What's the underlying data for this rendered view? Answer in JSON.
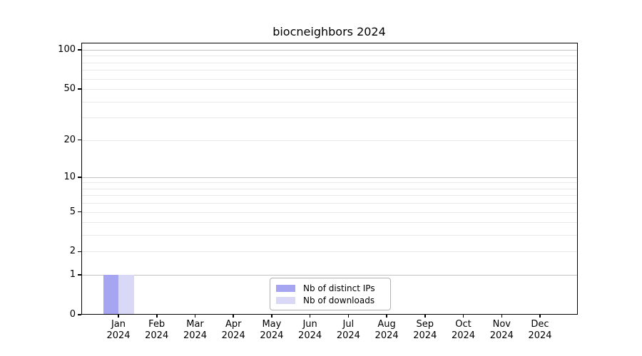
{
  "figure": {
    "background": "#ffffff"
  },
  "chart_data": {
    "type": "bar",
    "title": "biocneighbors 2024",
    "categories": [
      "Jan 2024",
      "Feb 2024",
      "Mar 2024",
      "Apr 2024",
      "May 2024",
      "Jun 2024",
      "Jul 2024",
      "Aug 2024",
      "Sep 2024",
      "Oct 2024",
      "Nov 2024",
      "Dec 2024"
    ],
    "series": [
      {
        "name": "Nb of distinct IPs",
        "color": "#a5a5f2",
        "values": [
          1,
          0,
          0,
          0,
          0,
          0,
          0,
          0,
          0,
          0,
          0,
          0
        ]
      },
      {
        "name": "Nb of downloads",
        "color": "#d9d9f7",
        "values": [
          1,
          0,
          0,
          0,
          0,
          0,
          0,
          0,
          0,
          0,
          0,
          0
        ]
      }
    ],
    "xlabel": "",
    "ylabel": "",
    "yscale": "log1p",
    "ylim": [
      0,
      113
    ],
    "yticks": [
      0,
      1,
      2,
      5,
      10,
      20,
      50,
      100
    ],
    "major_gridline_values": [
      1,
      10,
      100
    ],
    "minor_gridline_values": [
      2,
      3,
      4,
      5,
      6,
      7,
      8,
      9,
      20,
      30,
      40,
      50,
      60,
      70,
      80,
      90
    ],
    "grid": true,
    "legend_position": "lower-center-inside"
  },
  "legend": {
    "items": [
      {
        "label": "Nb of distinct IPs",
        "color": "#a5a5f2"
      },
      {
        "label": "Nb of downloads",
        "color": "#d9d9f7"
      }
    ]
  },
  "colors": {
    "major_grid": "#c3c3c3",
    "minor_grid": "#e8e8e8",
    "axis": "#000000",
    "text": "#000000",
    "legend_border": "#b0b0b0",
    "background": "#ffffff"
  }
}
